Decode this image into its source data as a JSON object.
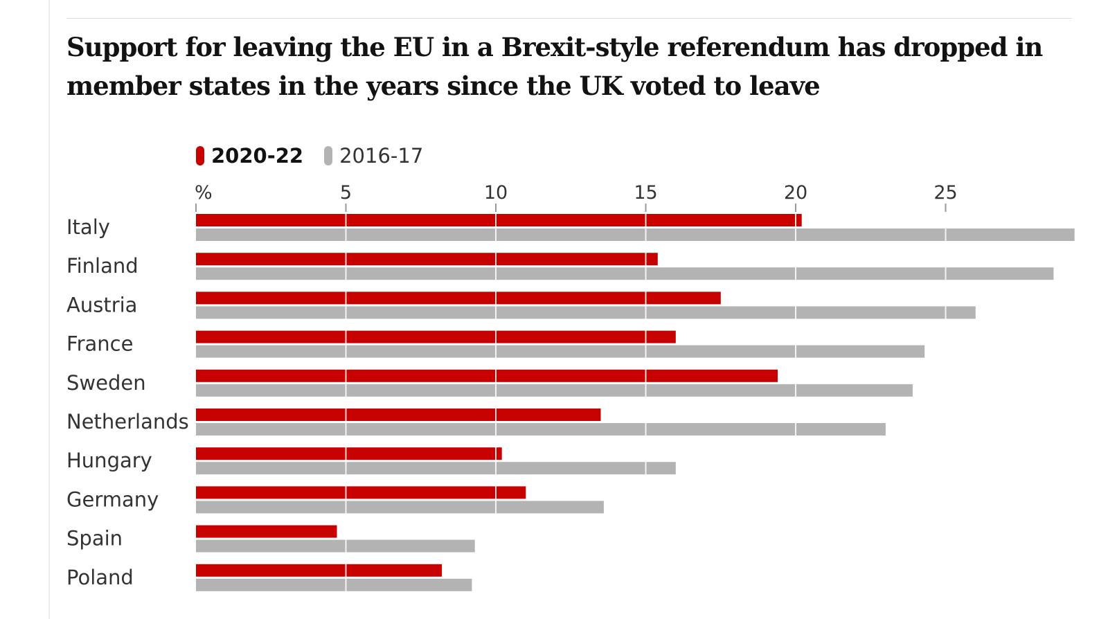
{
  "title": "Support for leaving the EU in a Brexit-style referendum has dropped in member states in the years since the UK voted to leave",
  "legend": [
    {
      "label": "2020-22",
      "color": "#c70000"
    },
    {
      "label": "2016-17",
      "color": "#b3b3b3"
    }
  ],
  "colors": {
    "recent": "#c70000",
    "earlier": "#b3b3b3",
    "gridline": "#ffffff",
    "text": "#333333"
  },
  "chart_data": {
    "type": "bar",
    "orientation": "horizontal",
    "title": "Support for leaving the EU in a Brexit-style referendum has dropped in member states in the years since the UK voted to leave",
    "axis_unit_label": "%",
    "xticks": [
      5,
      10,
      15,
      20,
      25
    ],
    "xlim": [
      0,
      29.3
    ],
    "categories": [
      "Italy",
      "Finland",
      "Austria",
      "France",
      "Sweden",
      "Netherlands",
      "Hungary",
      "Germany",
      "Spain",
      "Poland"
    ],
    "series": [
      {
        "name": "2020-22",
        "values": [
          20.2,
          15.4,
          17.5,
          16.0,
          19.4,
          13.5,
          10.2,
          11.0,
          4.7,
          8.2
        ]
      },
      {
        "name": "2016-17",
        "values": [
          29.3,
          28.6,
          26.0,
          24.3,
          23.9,
          23.0,
          16.0,
          13.6,
          9.3,
          9.2
        ]
      }
    ]
  }
}
